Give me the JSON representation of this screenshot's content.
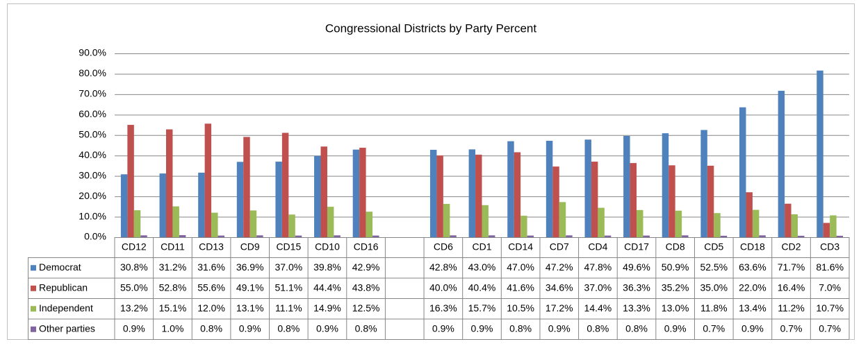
{
  "chart_data": {
    "type": "bar",
    "title": "Congressional Districts by Party Percent",
    "categories": [
      "CD12",
      "CD11",
      "CD13",
      "CD9",
      "CD15",
      "CD10",
      "CD16",
      null,
      "CD6",
      "CD1",
      "CD14",
      "CD7",
      "CD4",
      "CD17",
      "CD8",
      "CD5",
      "CD18",
      "CD2",
      "CD3"
    ],
    "series": [
      {
        "name": "Democrat",
        "color": "#4f81bd",
        "values": [
          30.8,
          31.2,
          31.6,
          36.9,
          37.0,
          39.8,
          42.9,
          null,
          42.8,
          43.0,
          47.0,
          47.2,
          47.8,
          49.6,
          50.9,
          52.5,
          63.6,
          71.7,
          81.6
        ],
        "value_labels": [
          "30.8%",
          "31.2%",
          "31.6%",
          "36.9%",
          "37.0%",
          "39.8%",
          "42.9%",
          null,
          "42.8%",
          "43.0%",
          "47.0%",
          "47.2%",
          "47.8%",
          "49.6%",
          "50.9%",
          "52.5%",
          "63.6%",
          "71.7%",
          "81.6%"
        ]
      },
      {
        "name": "Republican",
        "color": "#c0504d",
        "values": [
          55.0,
          52.8,
          55.6,
          49.1,
          51.1,
          44.4,
          43.8,
          null,
          40.0,
          40.4,
          41.6,
          34.6,
          37.0,
          36.3,
          35.2,
          35.0,
          22.0,
          16.4,
          7.0
        ],
        "value_labels": [
          "55.0%",
          "52.8%",
          "55.6%",
          "49.1%",
          "51.1%",
          "44.4%",
          "43.8%",
          null,
          "40.0%",
          "40.4%",
          "41.6%",
          "34.6%",
          "37.0%",
          "36.3%",
          "35.2%",
          "35.0%",
          "22.0%",
          "16.4%",
          "7.0%"
        ]
      },
      {
        "name": "Independent",
        "color": "#9bbb59",
        "values": [
          13.2,
          15.1,
          12.0,
          13.1,
          11.1,
          14.9,
          12.5,
          null,
          16.3,
          15.7,
          10.5,
          17.2,
          14.4,
          13.3,
          13.0,
          11.8,
          13.4,
          11.2,
          10.7
        ],
        "value_labels": [
          "13.2%",
          "15.1%",
          "12.0%",
          "13.1%",
          "11.1%",
          "14.9%",
          "12.5%",
          null,
          "16.3%",
          "15.7%",
          "10.5%",
          "17.2%",
          "14.4%",
          "13.3%",
          "13.0%",
          "11.8%",
          "13.4%",
          "11.2%",
          "10.7%"
        ]
      },
      {
        "name": "Other parties",
        "color": "#8064a2",
        "values": [
          0.9,
          1.0,
          0.8,
          0.9,
          0.8,
          0.9,
          0.8,
          null,
          0.9,
          0.9,
          0.8,
          0.9,
          0.8,
          0.8,
          0.9,
          0.7,
          0.9,
          0.7,
          0.7
        ],
        "value_labels": [
          "0.9%",
          "1.0%",
          "0.8%",
          "0.9%",
          "0.8%",
          "0.9%",
          "0.8%",
          null,
          "0.9%",
          "0.9%",
          "0.8%",
          "0.9%",
          "0.8%",
          "0.8%",
          "0.9%",
          "0.7%",
          "0.9%",
          "0.7%",
          "0.7%"
        ]
      }
    ],
    "ylim": [
      0,
      90
    ],
    "yticks": [
      {
        "value": 0,
        "label": "0.0%"
      },
      {
        "value": 10,
        "label": "10.0%"
      },
      {
        "value": 20,
        "label": "20.0%"
      },
      {
        "value": 30,
        "label": "30.0%"
      },
      {
        "value": 40,
        "label": "40.0%"
      },
      {
        "value": 50,
        "label": "50.0%"
      },
      {
        "value": 60,
        "label": "60.0%"
      },
      {
        "value": 70,
        "label": "70.0%"
      },
      {
        "value": 80,
        "label": "80.0%"
      },
      {
        "value": 90,
        "label": "90.0%"
      }
    ],
    "grid": true
  }
}
